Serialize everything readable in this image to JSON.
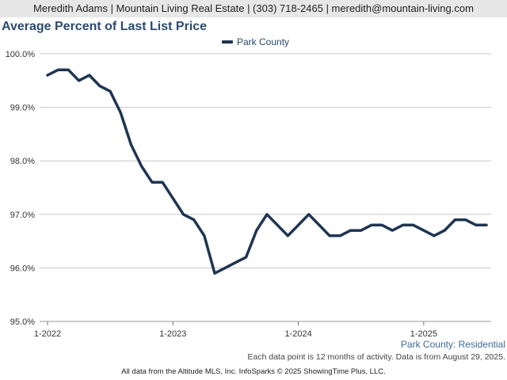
{
  "header": {
    "contact": "Meredith Adams | Mountain Living Real Estate | (303) 718-2465 | meredith@mountain-living.com"
  },
  "chart_data": {
    "type": "line",
    "title": "Average Percent of Last List Price",
    "xlabel": "",
    "ylabel": "",
    "ylim": [
      95.0,
      100.0
    ],
    "y_ticks": [
      "100.0%",
      "99.0%",
      "98.0%",
      "97.0%",
      "96.0%",
      "95.0%"
    ],
    "x_ticks": [
      "1-2022",
      "1-2023",
      "1-2024",
      "1-2025"
    ],
    "grid": true,
    "legend_position": "top",
    "series": [
      {
        "name": "Park County",
        "color": "#1e3552",
        "x": [
          "1-2022",
          "2-2022",
          "3-2022",
          "4-2022",
          "5-2022",
          "6-2022",
          "7-2022",
          "8-2022",
          "9-2022",
          "10-2022",
          "11-2022",
          "12-2022",
          "1-2023",
          "2-2023",
          "3-2023",
          "4-2023",
          "5-2023",
          "6-2023",
          "7-2023",
          "8-2023",
          "9-2023",
          "10-2023",
          "11-2023",
          "12-2023",
          "1-2024",
          "2-2024",
          "3-2024",
          "4-2024",
          "5-2024",
          "6-2024",
          "7-2024",
          "8-2024",
          "9-2024",
          "10-2024",
          "11-2024",
          "12-2024",
          "1-2025",
          "2-2025",
          "3-2025",
          "4-2025",
          "5-2025",
          "6-2025",
          "7-2025"
        ],
        "values": [
          99.6,
          99.7,
          99.7,
          99.5,
          99.6,
          99.4,
          99.3,
          98.9,
          98.3,
          97.9,
          97.6,
          97.6,
          97.3,
          97.0,
          96.9,
          96.6,
          95.9,
          96.0,
          96.1,
          96.2,
          96.7,
          97.0,
          96.8,
          96.6,
          96.8,
          97.0,
          96.8,
          96.6,
          96.6,
          96.7,
          96.7,
          96.8,
          96.8,
          96.7,
          96.8,
          96.8,
          96.7,
          96.6,
          96.7,
          96.9,
          96.9,
          96.8,
          96.8
        ]
      }
    ],
    "subtitle_right": "Park County: Residential"
  },
  "footer": {
    "note": "Each data point is 12 months of activity. Data is from August 29, 2025.",
    "credit": "All data from the Altitude MLS, Inc. InfoSparks © 2025 ShowingTime Plus, LLC."
  }
}
